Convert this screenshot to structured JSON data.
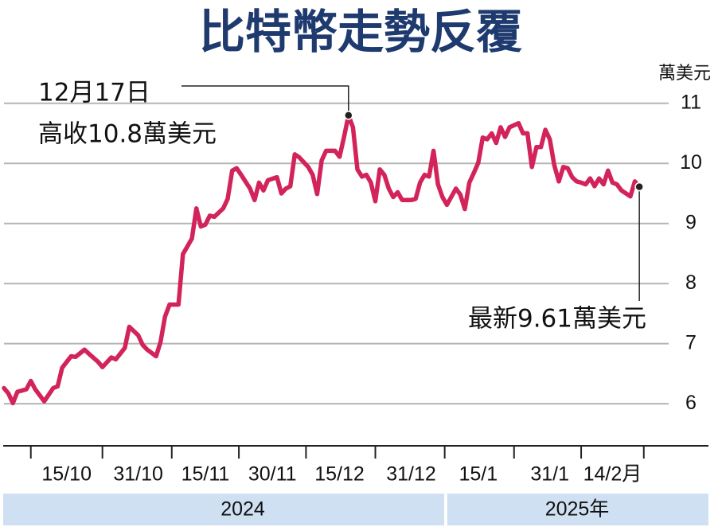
{
  "chart_data": {
    "type": "line",
    "title": "比特幣走勢反覆",
    "y_unit": "萬美元",
    "x": [
      "1/10",
      "2/10",
      "3/10",
      "4/10",
      "6/10",
      "7/10",
      "8/10",
      "10/10",
      "12/10",
      "13/10",
      "14/10",
      "16/10",
      "17/10",
      "19/10",
      "20/10",
      "22/10",
      "23/10",
      "25/10",
      "26/10",
      "28/10",
      "29/10",
      "31/10",
      "1/11",
      "2/11",
      "4/11",
      "5/11",
      "6/11",
      "7/11",
      "9/11",
      "10/11",
      "12/11",
      "13/11",
      "14/11",
      "15/11",
      "16/11",
      "17/11",
      "19/11",
      "20/11",
      "21/11",
      "22/11",
      "23/11",
      "25/11",
      "26/11",
      "27/11",
      "28/11",
      "29/11",
      "1/12",
      "2/12",
      "3/12",
      "4/12",
      "5/12",
      "6/12",
      "8/12",
      "9/12",
      "10/12",
      "11/12",
      "12/12",
      "14/12",
      "15/12",
      "16/12",
      "17/12",
      "18/12",
      "19/12",
      "20/12",
      "21/12",
      "22/12",
      "23/12",
      "24/12",
      "25/12",
      "26/12",
      "27/12",
      "28/12",
      "29/12",
      "31/12",
      "1/1",
      "2/1",
      "3/1",
      "4/1",
      "5/1",
      "6/1",
      "7/1",
      "8/1",
      "10/1",
      "11/1",
      "12/1",
      "13/1",
      "14/1",
      "15/1",
      "16/1",
      "17/1",
      "18/1",
      "19/1",
      "20/1",
      "21/1",
      "22/1",
      "24/1",
      "25/1",
      "26/1",
      "27/1",
      "28/1",
      "29/1",
      "30/1",
      "31/1",
      "1/2",
      "2/2",
      "3/2",
      "4/2",
      "5/2",
      "6/2",
      "7/2",
      "8/2",
      "9/2",
      "10/2",
      "11/2",
      "12/2",
      "13/2",
      "14/2",
      "15/2",
      "16/2",
      "18/2",
      "19/2",
      "20/2"
    ],
    "series": [
      {
        "color": "#d2245a",
        "values": [
          6.26,
          6.17,
          6.01,
          6.2,
          6.24,
          6.38,
          6.24,
          6.04,
          6.26,
          6.29,
          6.6,
          6.79,
          6.78,
          6.9,
          6.83,
          6.7,
          6.61,
          6.77,
          6.74,
          6.93,
          7.28,
          7.14,
          6.98,
          6.9,
          6.79,
          7.03,
          7.45,
          7.65,
          7.65,
          8.49,
          8.75,
          9.25,
          8.95,
          8.98,
          9.13,
          9.11,
          9.25,
          9.41,
          9.88,
          9.92,
          9.81,
          9.58,
          9.39,
          9.68,
          9.55,
          9.72,
          9.77,
          9.5,
          9.58,
          9.62,
          10.15,
          10.1,
          9.94,
          9.81,
          9.49,
          10.05,
          10.21,
          10.21,
          10.11,
          10.44,
          10.8,
          10.6,
          9.9,
          9.78,
          9.81,
          9.68,
          9.37,
          9.9,
          9.81,
          9.58,
          9.44,
          9.52,
          9.39,
          9.39,
          9.41,
          9.68,
          9.81,
          9.78,
          10.21,
          9.65,
          9.44,
          9.31,
          9.58,
          9.48,
          9.24,
          9.68,
          9.84,
          10.01,
          10.43,
          10.4,
          10.5,
          10.34,
          10.6,
          10.44,
          10.6,
          10.67,
          10.5,
          10.5,
          9.94,
          10.27,
          10.27,
          10.56,
          10.4,
          9.97,
          9.7,
          9.94,
          9.92,
          9.77,
          9.7,
          9.68,
          9.65,
          9.75,
          9.62,
          9.75,
          9.65,
          9.88,
          9.68,
          9.65,
          9.55,
          9.45,
          9.7,
          9.61
        ]
      }
    ],
    "xlim": [
      "1/10",
      "23/2"
    ],
    "xticks": [
      "15/10",
      "31/10",
      "15/11",
      "30/11",
      "15/12",
      "31/12",
      "15/1",
      "31/1",
      {
        "value": "14/2",
        "label": "14/2月"
      }
    ],
    "ylim": [
      5.3,
      11.5
    ],
    "yticks": [
      6,
      7,
      8,
      9,
      10,
      11
    ],
    "grid": true,
    "annotations": {
      "peak": [
        "12月17日",
        "高收10.8萬美元"
      ],
      "latest": "最新9.61萬美元"
    },
    "year_labels": [
      "2024",
      "2025年"
    ]
  }
}
